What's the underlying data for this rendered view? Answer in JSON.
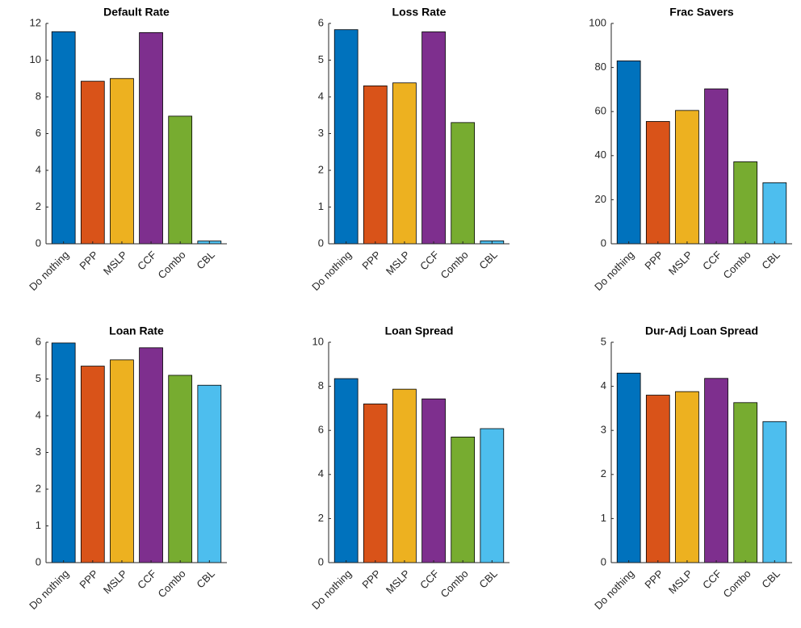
{
  "chart_data": [
    {
      "type": "bar",
      "title": "Default Rate",
      "categories": [
        "Do nothing",
        "PPP",
        "MSLP",
        "CCF",
        "Combo",
        "CBL"
      ],
      "values": [
        11.55,
        8.85,
        9.0,
        11.5,
        6.95,
        0.15
      ],
      "colors": [
        "#0072BD",
        "#D95319",
        "#EDB120",
        "#7E2F8E",
        "#77AC30",
        "#4DBEEE"
      ],
      "ylim": [
        0,
        12
      ],
      "yticks": [
        0,
        2,
        4,
        6,
        8,
        10,
        12
      ]
    },
    {
      "type": "bar",
      "title": "Loss Rate",
      "categories": [
        "Do nothing",
        "PPP",
        "MSLP",
        "CCF",
        "Combo",
        "CBL"
      ],
      "values": [
        5.83,
        4.3,
        4.38,
        5.77,
        3.3,
        0.08
      ],
      "colors": [
        "#0072BD",
        "#D95319",
        "#EDB120",
        "#7E2F8E",
        "#77AC30",
        "#4DBEEE"
      ],
      "ylim": [
        0,
        6
      ],
      "yticks": [
        0,
        1,
        2,
        3,
        4,
        5,
        6
      ]
    },
    {
      "type": "bar",
      "title": "Frac Savers",
      "categories": [
        "Do nothing",
        "PPP",
        "MSLP",
        "CCF",
        "Combo",
        "CBL"
      ],
      "values": [
        83,
        55.5,
        60.5,
        70.3,
        37.2,
        27.7
      ],
      "colors": [
        "#0072BD",
        "#D95319",
        "#EDB120",
        "#7E2F8E",
        "#77AC30",
        "#4DBEEE"
      ],
      "ylim": [
        0,
        100
      ],
      "yticks": [
        0,
        20,
        40,
        60,
        80,
        100
      ]
    },
    {
      "type": "bar",
      "title": "Loan Rate",
      "categories": [
        "Do nothing",
        "PPP",
        "MSLP",
        "CCF",
        "Combo",
        "CBL"
      ],
      "values": [
        5.98,
        5.35,
        5.52,
        5.85,
        5.1,
        4.83
      ],
      "colors": [
        "#0072BD",
        "#D95319",
        "#EDB120",
        "#7E2F8E",
        "#77AC30",
        "#4DBEEE"
      ],
      "ylim": [
        0,
        6
      ],
      "yticks": [
        0,
        1,
        2,
        3,
        4,
        5,
        6
      ]
    },
    {
      "type": "bar",
      "title": "Loan Spread",
      "categories": [
        "Do nothing",
        "PPP",
        "MSLP",
        "CCF",
        "Combo",
        "CBL"
      ],
      "values": [
        8.35,
        7.2,
        7.87,
        7.43,
        5.7,
        6.08
      ],
      "colors": [
        "#0072BD",
        "#D95319",
        "#EDB120",
        "#7E2F8E",
        "#77AC30",
        "#4DBEEE"
      ],
      "ylim": [
        0,
        10
      ],
      "yticks": [
        0,
        2,
        4,
        6,
        8,
        10
      ]
    },
    {
      "type": "bar",
      "title": "Dur-Adj Loan Spread",
      "categories": [
        "Do nothing",
        "PPP",
        "MSLP",
        "CCF",
        "Combo",
        "CBL"
      ],
      "values": [
        4.3,
        3.8,
        3.88,
        4.18,
        3.63,
        3.2
      ],
      "colors": [
        "#0072BD",
        "#D95319",
        "#EDB120",
        "#7E2F8E",
        "#77AC30",
        "#4DBEEE"
      ],
      "ylim": [
        0,
        5
      ],
      "yticks": [
        0,
        1,
        2,
        3,
        4,
        5
      ]
    }
  ]
}
